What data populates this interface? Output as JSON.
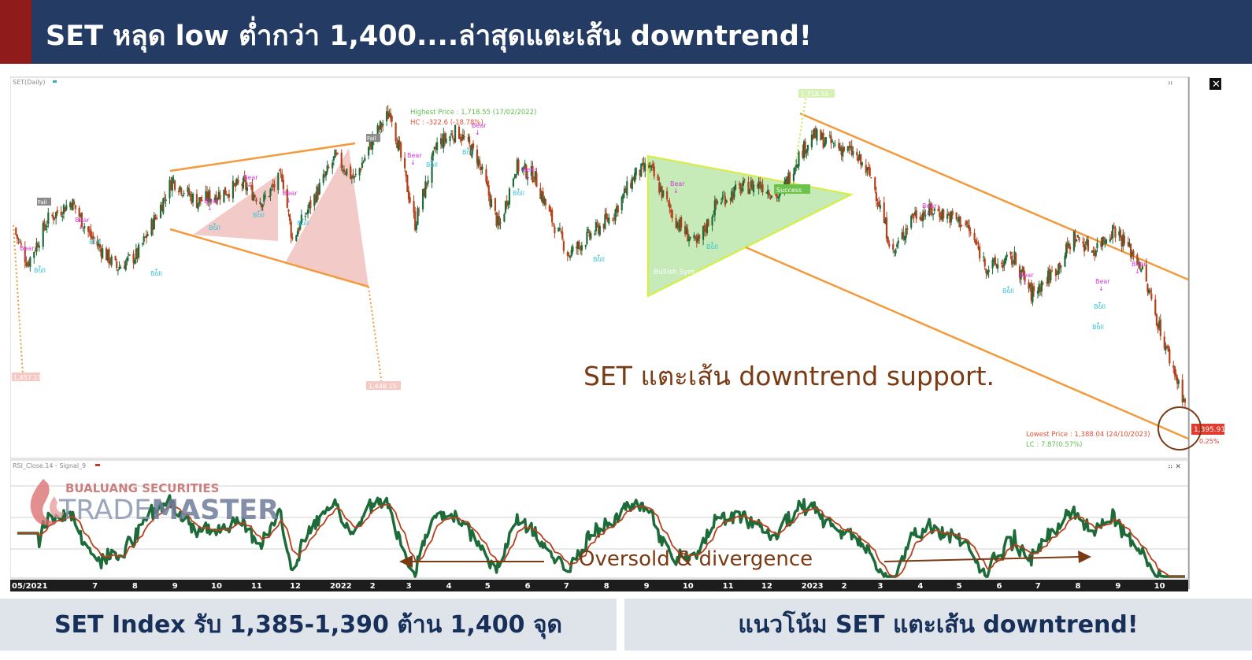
{
  "header": {
    "title": "SET หลุด low ต่ำกว่า 1,400....ล่าสุดแตะเส้น downtrend!"
  },
  "chart_labels": {
    "instrument": "SET(Daily)",
    "highest": "Highest Price : 1,718.55 (17/02/2022)",
    "hc": "HC : -322.6 (-18.78%)",
    "lowest": "Lowest Price : 1,388.04 (24/10/2023)",
    "lc": "LC : 7.87(0.57%)",
    "last_price": "1,395.91",
    "last_pct": "0.25%",
    "left_target": "1,457.17",
    "mid_target": "1,448.15",
    "top_target": "1,718.55",
    "bullish_label": "Bullish Sym",
    "success_label": "Success",
    "fail_label1": "Fail",
    "fail_label2": "Fail",
    "annotation_main": "SET แตะเส้น downtrend support.",
    "annotation_rsi": "Oversold & divergence",
    "rsi_label": "RSI_Close.14 - Signal_9",
    "bear": "Bear",
    "bull": "Bull"
  },
  "logo": {
    "company": "BUALUANG SECURITIES",
    "brand_a": "TRADE",
    "brand_b": "MASTER"
  },
  "footer": {
    "left": "SET Index รับ 1,385-1,390 ต้าน 1,400 จุด",
    "right": "แนวโน้ม SET แตะเส้น downtrend!"
  },
  "colors": {
    "up": "#1e6b3a",
    "down": "#b5411c",
    "trend": "#f39a3c",
    "signal": "#c0392b",
    "header": "#243b63",
    "accent": "#8f1b1b"
  },
  "chart_data": {
    "type": "candlestick",
    "title": "SET(Daily)",
    "x_ticks": [
      "05/2021",
      "7",
      "8",
      "9",
      "10",
      "11",
      "12",
      "2022",
      "2",
      "3",
      "4",
      "5",
      "6",
      "7",
      "8",
      "9",
      "10",
      "11",
      "12",
      "2023",
      "2",
      "3",
      "4",
      "5",
      "6",
      "7",
      "8",
      "9",
      "10"
    ],
    "y_range": [
      1360,
      1730
    ],
    "anchors": [
      [
        "2021-05-01",
        1585
      ],
      [
        "2021-05-12",
        1545
      ],
      [
        "2021-05-28",
        1595
      ],
      [
        "2021-06-15",
        1615
      ],
      [
        "2021-06-30",
        1575
      ],
      [
        "2021-07-20",
        1540
      ],
      [
        "2021-08-05",
        1555
      ],
      [
        "2021-08-20",
        1600
      ],
      [
        "2021-09-01",
        1640
      ],
      [
        "2021-09-20",
        1615
      ],
      [
        "2021-10-10",
        1625
      ],
      [
        "2021-10-25",
        1635
      ],
      [
        "2021-11-10",
        1615
      ],
      [
        "2021-11-25",
        1645
      ],
      [
        "2021-12-03",
        1572
      ],
      [
        "2021-12-20",
        1620
      ],
      [
        "2022-01-05",
        1665
      ],
      [
        "2022-01-20",
        1640
      ],
      [
        "2022-02-05",
        1690
      ],
      [
        "2022-02-17",
        1718
      ],
      [
        "2022-03-08",
        1590
      ],
      [
        "2022-03-25",
        1680
      ],
      [
        "2022-04-10",
        1695
      ],
      [
        "2022-04-25",
        1665
      ],
      [
        "2022-05-12",
        1585
      ],
      [
        "2022-05-25",
        1655
      ],
      [
        "2022-06-08",
        1645
      ],
      [
        "2022-06-20",
        1600
      ],
      [
        "2022-07-05",
        1555
      ],
      [
        "2022-07-20",
        1575
      ],
      [
        "2022-08-08",
        1600
      ],
      [
        "2022-08-25",
        1645
      ],
      [
        "2022-09-05",
        1655
      ],
      [
        "2022-09-25",
        1595
      ],
      [
        "2022-10-12",
        1565
      ],
      [
        "2022-10-28",
        1615
      ],
      [
        "2022-11-15",
        1630
      ],
      [
        "2022-11-30",
        1635
      ],
      [
        "2022-12-15",
        1620
      ],
      [
        "2022-12-29",
        1665
      ],
      [
        "2023-01-10",
        1690
      ],
      [
        "2023-01-25",
        1680
      ],
      [
        "2023-02-10",
        1670
      ],
      [
        "2023-02-25",
        1640
      ],
      [
        "2023-03-13",
        1555
      ],
      [
        "2023-03-28",
        1600
      ],
      [
        "2023-04-15",
        1605
      ],
      [
        "2023-05-08",
        1590
      ],
      [
        "2023-05-25",
        1540
      ],
      [
        "2023-06-15",
        1550
      ],
      [
        "2023-06-28",
        1510
      ],
      [
        "2023-07-18",
        1540
      ],
      [
        "2023-07-31",
        1575
      ],
      [
        "2023-08-15",
        1560
      ],
      [
        "2023-08-31",
        1585
      ],
      [
        "2023-09-20",
        1545
      ],
      [
        "2023-10-10",
        1450
      ],
      [
        "2023-10-25",
        1388
      ]
    ],
    "rsi": {
      "name": "RSI_Close.14",
      "signal": "Signal_9",
      "levels": [
        70,
        50,
        30
      ]
    }
  }
}
